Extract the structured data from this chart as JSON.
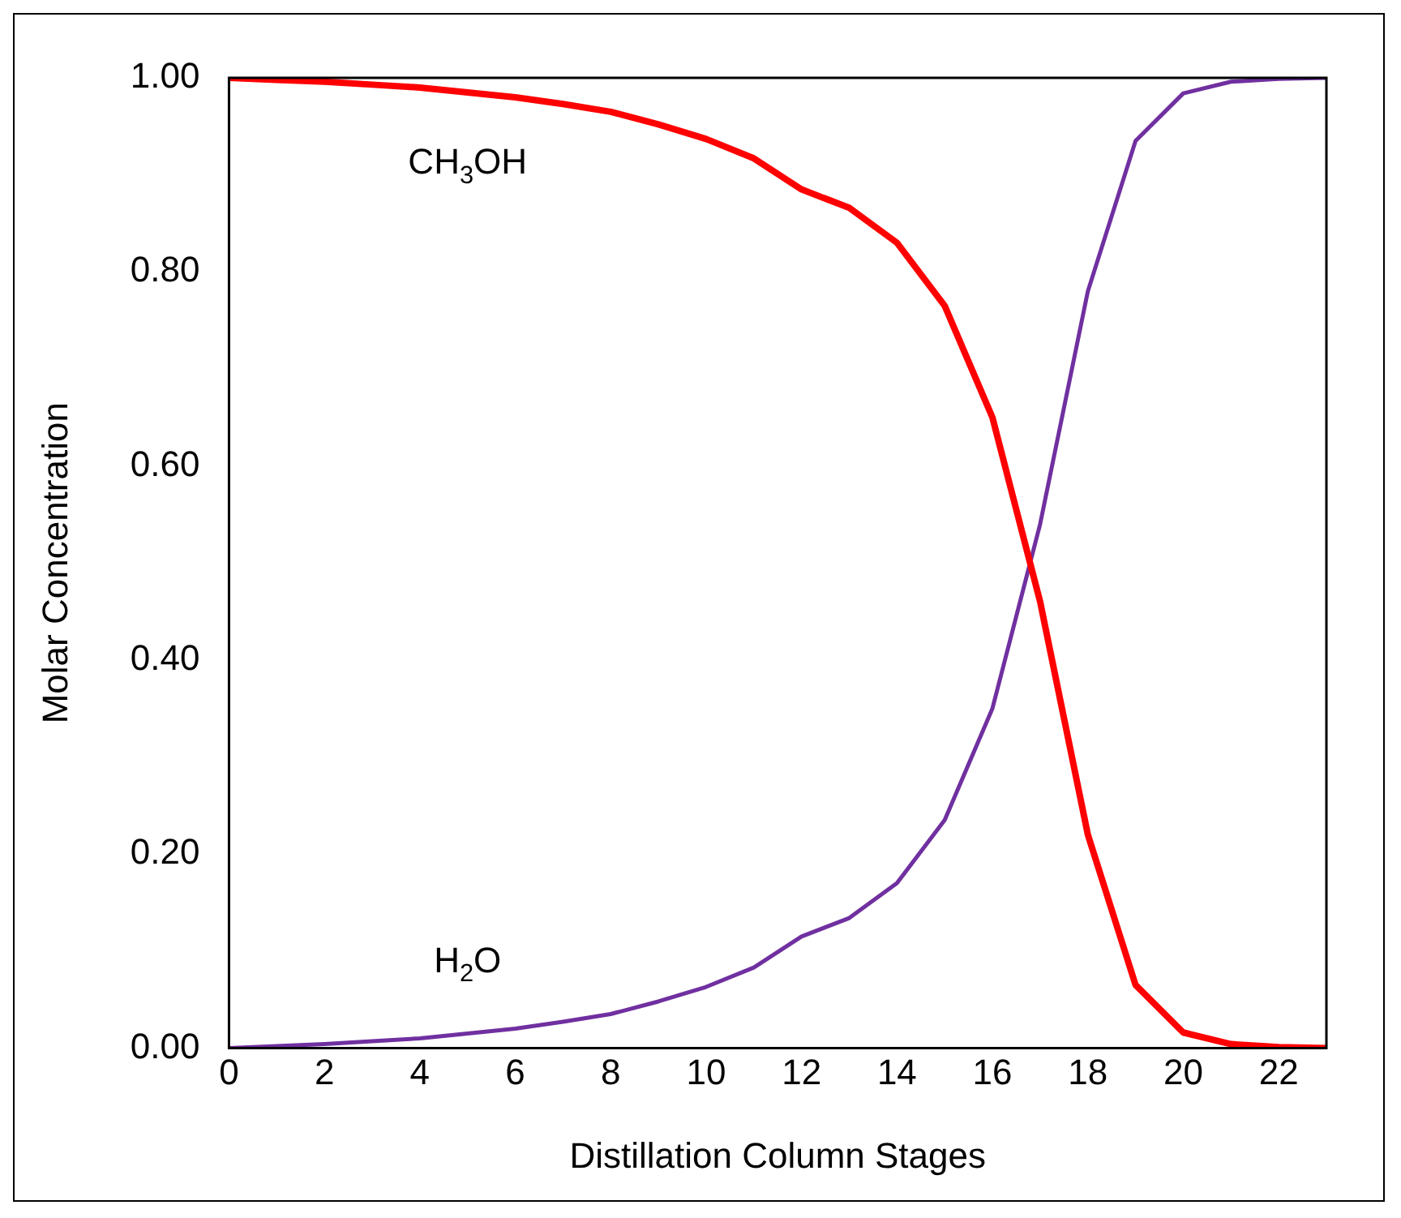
{
  "chart_data": {
    "type": "line",
    "xlabel": "Distillation Column Stages",
    "ylabel": "Molar Concentration",
    "x": [
      0,
      1,
      2,
      3,
      4,
      5,
      6,
      7,
      8,
      9,
      10,
      11,
      12,
      13,
      14,
      15,
      16,
      17,
      18,
      19,
      20,
      21,
      22,
      23
    ],
    "series": [
      {
        "name": "CH$_{3}$OH",
        "color": "#ff0000",
        "values": [
          1.0,
          0.998,
          0.996,
          0.993,
          0.99,
          0.985,
          0.98,
          0.973,
          0.965,
          0.952,
          0.937,
          0.917,
          0.885,
          0.866,
          0.83,
          0.765,
          0.65,
          0.46,
          0.22,
          0.065,
          0.016,
          0.004,
          0.001,
          0.0
        ]
      },
      {
        "name": "H$_{2}$O",
        "color": "#7030a0",
        "values": [
          0.0,
          0.002,
          0.004,
          0.007,
          0.01,
          0.015,
          0.02,
          0.027,
          0.035,
          0.048,
          0.063,
          0.083,
          0.115,
          0.134,
          0.17,
          0.235,
          0.35,
          0.54,
          0.78,
          0.935,
          0.984,
          0.996,
          0.999,
          1.0
        ]
      }
    ],
    "xlim": [
      0,
      23
    ],
    "xticks": [
      0,
      2,
      4,
      6,
      8,
      10,
      12,
      14,
      16,
      18,
      20,
      22
    ],
    "ylim": [
      0,
      1
    ],
    "yticks": [
      {
        "value": 0,
        "label": "0.00"
      },
      {
        "value": 0.2,
        "label": "0.20"
      },
      {
        "value": 0.4,
        "label": "0.40"
      },
      {
        "value": 0.6,
        "label": "0.60"
      },
      {
        "value": 0.8,
        "label": "0.80"
      },
      {
        "value": 1,
        "label": "1.00"
      }
    ],
    "grid": false,
    "legend": false,
    "marker": "none",
    "line_style": "solid"
  }
}
